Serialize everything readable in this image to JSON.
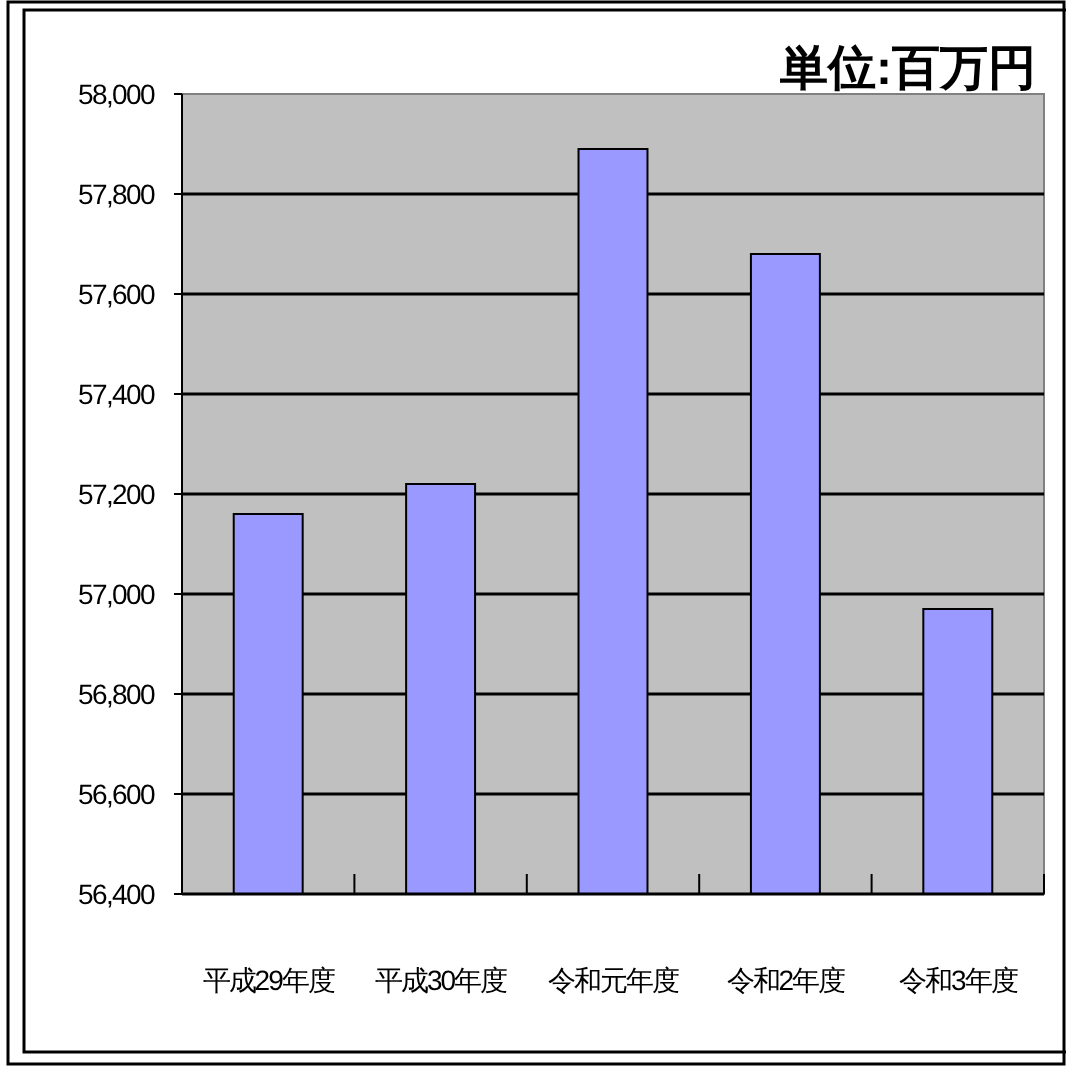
{
  "chart_data": {
    "type": "bar",
    "annotations": [
      "単位:百万円"
    ],
    "categories": [
      "平成29年度",
      "平成30年度",
      "令和元年度",
      "令和2年度",
      "令和3年度"
    ],
    "values": [
      57160,
      57220,
      57890,
      57680,
      56970
    ],
    "color": "#9999ff",
    "ylim": [
      56400,
      58000
    ],
    "yticks": [
      {
        "value": 56400,
        "label": "56,400"
      },
      {
        "value": 56600,
        "label": "56,600"
      },
      {
        "value": 56800,
        "label": "56,800"
      },
      {
        "value": 57000,
        "label": "57,000"
      },
      {
        "value": 57200,
        "label": "57,200"
      },
      {
        "value": 57400,
        "label": "57,400"
      },
      {
        "value": 57600,
        "label": "57,600"
      },
      {
        "value": 57800,
        "label": "57,800"
      },
      {
        "value": 58000,
        "label": "58,000"
      }
    ],
    "grid": "y"
  }
}
